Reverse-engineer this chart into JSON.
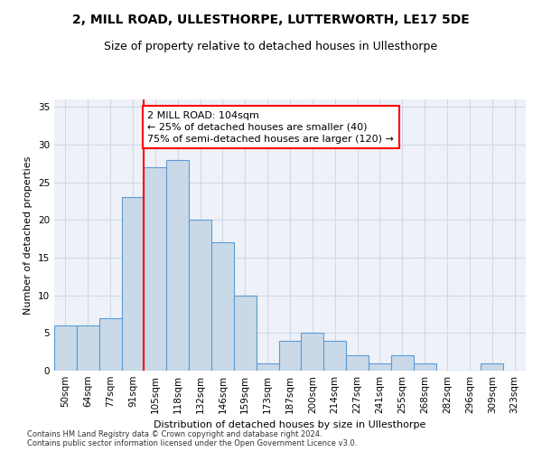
{
  "title": "2, MILL ROAD, ULLESTHORPE, LUTTERWORTH, LE17 5DE",
  "subtitle": "Size of property relative to detached houses in Ullesthorpe",
  "xlabel": "Distribution of detached houses by size in Ullesthorpe",
  "ylabel": "Number of detached properties",
  "bin_labels": [
    "50sqm",
    "64sqm",
    "77sqm",
    "91sqm",
    "105sqm",
    "118sqm",
    "132sqm",
    "146sqm",
    "159sqm",
    "173sqm",
    "187sqm",
    "200sqm",
    "214sqm",
    "227sqm",
    "241sqm",
    "255sqm",
    "268sqm",
    "282sqm",
    "296sqm",
    "309sqm",
    "323sqm"
  ],
  "bar_heights": [
    6,
    6,
    7,
    23,
    27,
    28,
    20,
    17,
    10,
    1,
    4,
    5,
    4,
    2,
    1,
    2,
    1,
    0,
    0,
    1,
    0
  ],
  "bar_color": "#c9d9e8",
  "bar_edge_color": "#5b9bd5",
  "red_line_bin": 4,
  "annotation_text": "2 MILL ROAD: 104sqm\n← 25% of detached houses are smaller (40)\n75% of semi-detached houses are larger (120) →",
  "annotation_box_color": "white",
  "annotation_box_edge": "red",
  "ylim": [
    0,
    36
  ],
  "yticks": [
    0,
    5,
    10,
    15,
    20,
    25,
    30,
    35
  ],
  "grid_color": "#d0d8e8",
  "bg_color": "#eef2f8",
  "footer": "Contains HM Land Registry data © Crown copyright and database right 2024.\nContains public sector information licensed under the Open Government Licence v3.0.",
  "title_fontsize": 10,
  "subtitle_fontsize": 9,
  "xlabel_fontsize": 8,
  "ylabel_fontsize": 8,
  "tick_fontsize": 7.5,
  "footer_fontsize": 6,
  "annotation_fontsize": 8
}
